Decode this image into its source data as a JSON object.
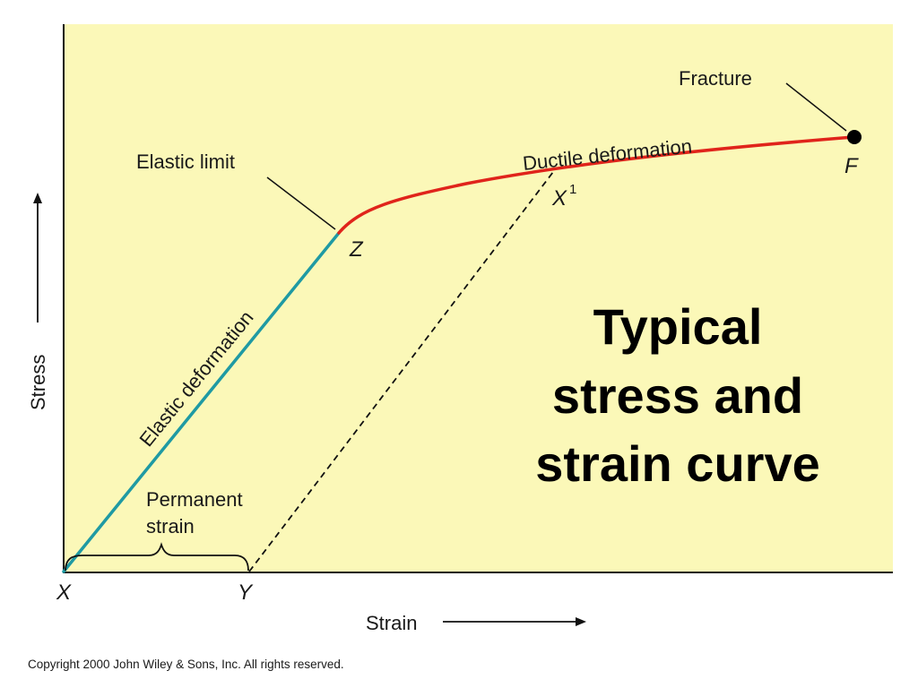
{
  "colors": {
    "plot_background": "#fbf8b8",
    "elastic_line": "#1f9aa3",
    "ductile_line": "#e0241b",
    "axis": "#111111",
    "text": "#1a1a1a"
  },
  "axes": {
    "y_label": "Stress",
    "x_label": "Strain"
  },
  "points": {
    "origin": "X",
    "offset": "Y",
    "elastic_limit_point": "Z",
    "unload_point": "X",
    "unload_point_sup": "1",
    "fracture_point": "F"
  },
  "annotations": {
    "elastic_limit": "Elastic limit",
    "fracture": "Fracture",
    "ductile_deformation": "Ductile deformation",
    "elastic_deformation": "Elastic deformation",
    "permanent_strain_line1": "Permanent",
    "permanent_strain_line2": "strain"
  },
  "title": {
    "line1": "Typical",
    "line2": "stress and",
    "line3": "strain curve"
  },
  "copyright": "Copyright 2000 John Wiley & Sons, Inc. All rights reserved."
}
